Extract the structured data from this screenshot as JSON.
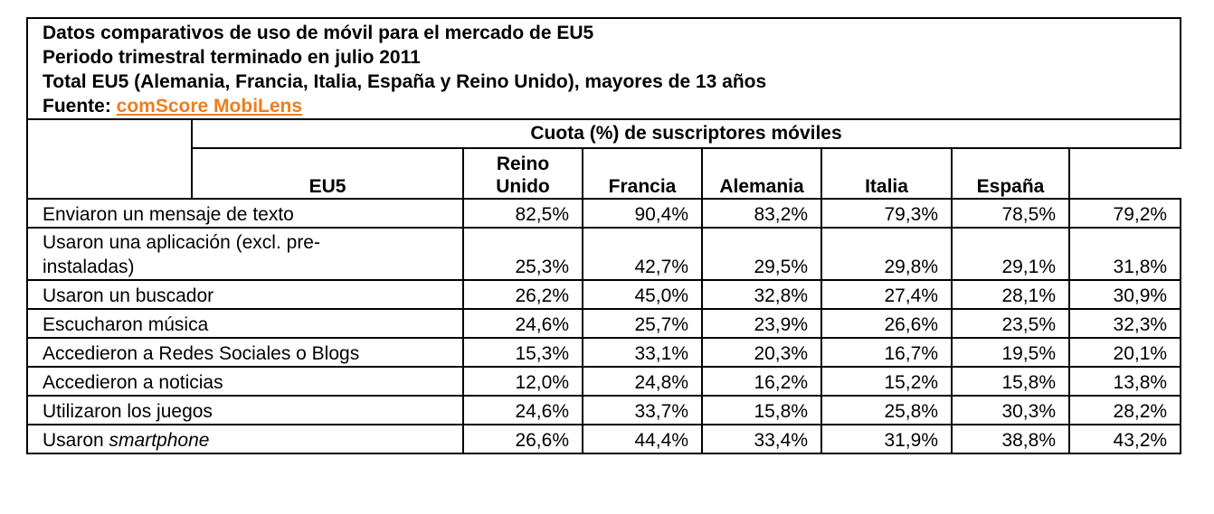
{
  "title_lines": [
    "Datos comparativos de uso de móvil para el mercado de EU5",
    "Periodo trimestral terminado en julio 2011",
    "Total EU5 (Alemania, Francia, Italia, España y Reino Unido), mayores de 13 años"
  ],
  "source": {
    "label": "Fuente:",
    "link_text": "comScore MobiLens",
    "link_color": "#f07d1a"
  },
  "header": {
    "group_label": "Cuota (%) de suscriptores móviles",
    "columns": [
      {
        "line1": "",
        "line2": "EU5"
      },
      {
        "line1": "Reino",
        "line2": "Unido"
      },
      {
        "line1": "",
        "line2": "Francia"
      },
      {
        "line1": "",
        "line2": "Alemania"
      },
      {
        "line1": "",
        "line2": "Italia"
      },
      {
        "line1": "",
        "line2": "España"
      }
    ]
  },
  "rows": [
    {
      "label": "Enviaron un mensaje de texto",
      "label_italic": "",
      "label_line2": "",
      "values": [
        "82,5%",
        "90,4%",
        "83,2%",
        "79,3%",
        "78,5%",
        "79,2%"
      ]
    },
    {
      "label": "Usaron una aplicación (excl. pre-",
      "label_italic": "",
      "label_line2": "instaladas)",
      "values": [
        "25,3%",
        "42,7%",
        "29,5%",
        "29,8%",
        "29,1%",
        "31,8%"
      ]
    },
    {
      "label": "Usaron un buscador",
      "label_italic": "",
      "label_line2": "",
      "values": [
        "26,2%",
        "45,0%",
        "32,8%",
        "27,4%",
        "28,1%",
        "30,9%"
      ]
    },
    {
      "label": "Escucharon música",
      "label_italic": "",
      "label_line2": "",
      "values": [
        "24,6%",
        "25,7%",
        "23,9%",
        "26,6%",
        "23,5%",
        "32,3%"
      ]
    },
    {
      "label": "Accedieron a Redes Sociales o Blogs",
      "label_italic": "",
      "label_line2": "",
      "values": [
        "15,3%",
        "33,1%",
        "20,3%",
        "16,7%",
        "19,5%",
        "20,1%"
      ]
    },
    {
      "label": "Accedieron a noticias",
      "label_italic": "",
      "label_line2": "",
      "values": [
        "12,0%",
        "24,8%",
        "16,2%",
        "15,2%",
        "15,8%",
        "13,8%"
      ]
    },
    {
      "label": "Utilizaron los juegos",
      "label_italic": "",
      "label_line2": "",
      "values": [
        "24,6%",
        "33,7%",
        "15,8%",
        "25,8%",
        "30,3%",
        "28,2%"
      ]
    },
    {
      "label": "Usaron ",
      "label_italic": "smartphone",
      "label_line2": "",
      "values": [
        "26,6%",
        "44,4%",
        "33,4%",
        "31,9%",
        "38,8%",
        "43,2%"
      ]
    }
  ]
}
